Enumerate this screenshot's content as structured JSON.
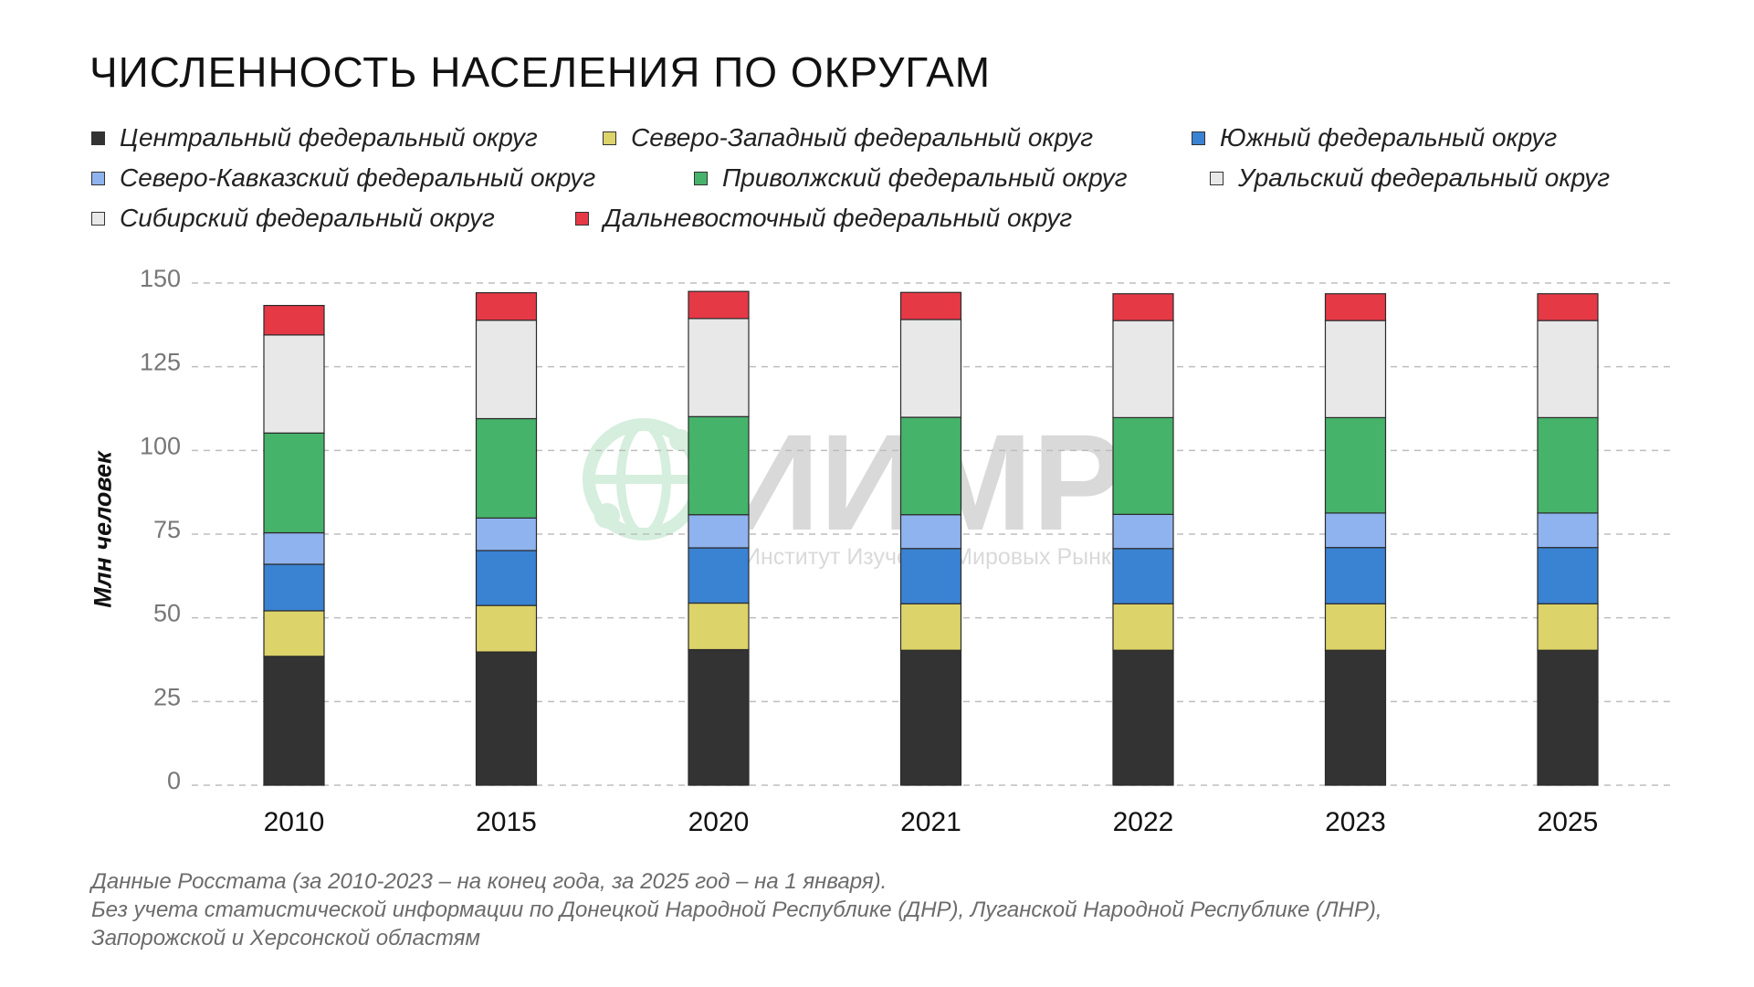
{
  "title": "Численность населения по округам",
  "notes": [
    "Данные Росстата (за 2010-2023 – на конец года, за 2025 год – на 1 января).",
    "Без учета статистической информации по Донецкой Народной Республике (ДНР), Луганской Народной Республике (ЛНР),",
    "Запорожской и Херсонской областям"
  ],
  "watermark": {
    "logo_text": "ИИМР",
    "caption": "Институт Изучения Мировых Рынков"
  },
  "chart_data": {
    "type": "bar",
    "stacked": true,
    "title": "Численность населения по округам",
    "ylabel": "Млн человек",
    "xlabel": "",
    "ylim": [
      0,
      150
    ],
    "yticks": [
      0,
      25,
      50,
      75,
      100,
      125,
      150
    ],
    "grid": true,
    "legend_position": "top",
    "categories": [
      "2010",
      "2015",
      "2020",
      "2021",
      "2022",
      "2023",
      "2025"
    ],
    "series": [
      {
        "name": "Центральный федеральный округ",
        "color": "#333333",
        "values": [
          38.5,
          39.8,
          40.5,
          40.3,
          40.3,
          40.3,
          40.3
        ]
      },
      {
        "name": "Северо-Западный федеральный округ",
        "color": "#dcd36a",
        "values": [
          13.6,
          13.9,
          13.9,
          13.9,
          13.9,
          13.9,
          13.9
        ]
      },
      {
        "name": "Южный федеральный округ",
        "color": "#3a82d2",
        "values": [
          13.9,
          16.4,
          16.5,
          16.5,
          16.5,
          16.8,
          16.8
        ]
      },
      {
        "name": "Северо-Кавказский федеральный округ",
        "color": "#8fb3ee",
        "values": [
          9.4,
          9.7,
          9.9,
          10.1,
          10.2,
          10.3,
          10.3
        ]
      },
      {
        "name": "Приволжский федеральный округ",
        "color": "#46b36a",
        "values": [
          29.8,
          29.7,
          29.3,
          29.1,
          28.9,
          28.5,
          28.5
        ]
      },
      {
        "name": "Уральский федеральный округ",
        "color": "#e8e8e8",
        "values": [
          29.3,
          29.4,
          29.3,
          29.2,
          29.0,
          29.0,
          29.0
        ]
      },
      {
        "name": "Сибирский федеральный округ",
        "color": "#e8e8e8",
        "values": [
          0,
          0,
          0,
          0,
          0,
          0,
          0
        ]
      },
      {
        "name": "Дальневосточный федеральный округ",
        "color": "#e63946",
        "values": [
          8.8,
          8.2,
          8.1,
          8.1,
          8.0,
          8.0,
          8.0
        ]
      }
    ]
  }
}
